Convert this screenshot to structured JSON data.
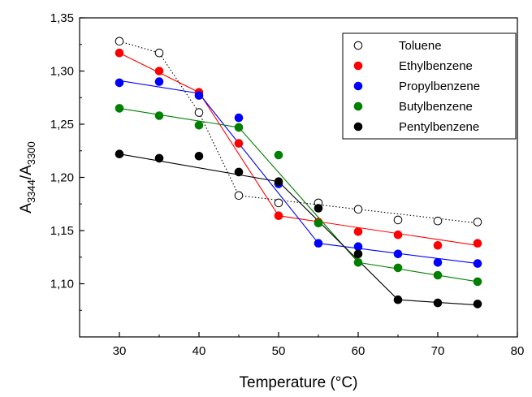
{
  "chart_data": {
    "type": "scatter",
    "xlabel": "Temperature (°C)",
    "ylabel": {
      "main": "A",
      "sub1": "3344",
      "sep": "/A",
      "sub2": "3300"
    },
    "xlim": [
      25,
      80
    ],
    "ylim": [
      1.05,
      1.35
    ],
    "xticks": [
      {
        "value": 30,
        "label": "30"
      },
      {
        "value": 40,
        "label": "40"
      },
      {
        "value": 50,
        "label": "50"
      },
      {
        "value": 60,
        "label": "60"
      },
      {
        "value": 70,
        "label": "70"
      },
      {
        "value": 80,
        "label": "80"
      }
    ],
    "yticks": [
      {
        "value": 1.1,
        "label": "1,10"
      },
      {
        "value": 1.15,
        "label": "1,15"
      },
      {
        "value": 1.2,
        "label": "1,20"
      },
      {
        "value": 1.25,
        "label": "1,25"
      },
      {
        "value": 1.3,
        "label": "1,30"
      },
      {
        "value": 1.35,
        "label": "1,35"
      }
    ],
    "grid": false,
    "legend_position": "top-right",
    "x": [
      30,
      35,
      40,
      45,
      50,
      55,
      60,
      65,
      70,
      75
    ],
    "series": [
      {
        "name": "Toluene",
        "color": "#000000",
        "marker": "open-circle",
        "values": [
          1.328,
          1.317,
          1.261,
          1.183,
          1.176,
          1.176,
          1.17,
          1.16,
          1.159,
          1.158
        ],
        "fit_style": "dotted",
        "fit_lines": [
          [
            [
              30,
              1.328
            ],
            [
              35,
              1.317
            ],
            [
              40,
              1.261
            ],
            [
              45,
              1.183
            ]
          ],
          [
            [
              45,
              1.183
            ],
            [
              75,
              1.157
            ]
          ]
        ]
      },
      {
        "name": "Ethylbenzene",
        "color": "#ff0000",
        "marker": "filled-circle",
        "values": [
          1.317,
          1.3,
          1.28,
          1.232,
          1.164,
          1.158,
          1.149,
          1.146,
          1.136,
          1.138
        ],
        "fit_style": "solid",
        "fit_lines": [
          [
            [
              30,
              1.317
            ],
            [
              40,
              1.28
            ],
            [
              50,
              1.164
            ],
            [
              75,
              1.136
            ]
          ]
        ]
      },
      {
        "name": "Propylbenzene",
        "color": "#0000ff",
        "marker": "filled-circle",
        "values": [
          1.289,
          1.29,
          1.277,
          1.256,
          1.194,
          1.138,
          1.135,
          1.128,
          1.12,
          1.119
        ],
        "fit_style": "solid",
        "fit_lines": [
          [
            [
              30,
              1.291
            ],
            [
              40,
              1.279
            ],
            [
              55,
              1.138
            ],
            [
              75,
              1.119
            ]
          ]
        ]
      },
      {
        "name": "Butylbenzene",
        "color": "#008000",
        "marker": "filled-circle",
        "values": [
          1.265,
          1.258,
          1.249,
          1.247,
          1.221,
          1.157,
          1.12,
          1.115,
          1.108,
          1.102
        ],
        "fit_style": "solid",
        "fit_lines": [
          [
            [
              30,
              1.265
            ],
            [
              45,
              1.247
            ],
            [
              60,
              1.12
            ],
            [
              75,
              1.102
            ]
          ]
        ]
      },
      {
        "name": "Pentylbenzene",
        "color": "#000000",
        "marker": "filled-circle",
        "values": [
          1.222,
          1.218,
          1.22,
          1.205,
          1.196,
          1.171,
          1.128,
          1.085,
          1.082,
          1.081
        ],
        "fit_style": "solid",
        "fit_lines": [
          [
            [
              30,
              1.222
            ],
            [
              50,
              1.196
            ],
            [
              65,
              1.085
            ],
            [
              75,
              1.08
            ]
          ]
        ]
      }
    ]
  }
}
